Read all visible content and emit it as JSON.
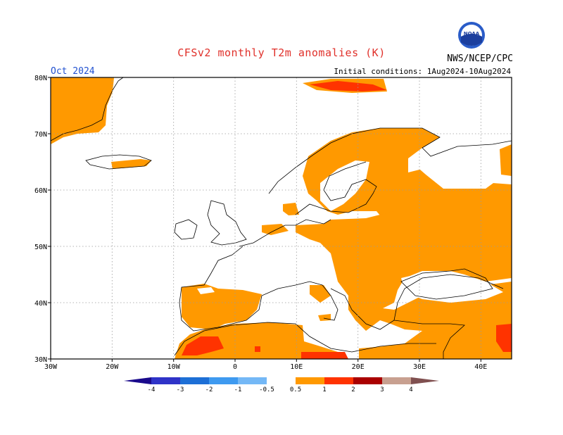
{
  "title": "CFSv2 monthly T2m anomalies (K)",
  "month": "Oct 2024",
  "initial_conditions": "Initial conditions:  1Aug2024-10Aug2024",
  "agency": "NWS/NCEP/CPC",
  "logo_text": "NOAA",
  "map": {
    "lon_range": [
      -30,
      45
    ],
    "lat_range": [
      30,
      80
    ],
    "lon_ticks": [
      "30W",
      "20W",
      "10W",
      "0",
      "10E",
      "20E",
      "30E",
      "40E"
    ],
    "lat_ticks": [
      "80N",
      "70N",
      "60N",
      "50N",
      "40N",
      "30N"
    ],
    "gridlines": true
  },
  "colorbar": {
    "labels": [
      "-4",
      "-3",
      "-2",
      "-1",
      "-0.5",
      "0.5",
      "1",
      "2",
      "3",
      "4"
    ],
    "colors": [
      "#1a0a8c",
      "#2f33c8",
      "#1d6fd6",
      "#3e9af0",
      "#74b8f6",
      "#ffffff",
      "#ff9900",
      "#ff3300",
      "#aa0000",
      "#c8a090",
      "#805050"
    ]
  },
  "colors": {
    "anom_0_5_1": "#ff9900",
    "anom_1_2": "#ff3300",
    "anom_2_3": "#aa0000",
    "coast": "#000000"
  }
}
